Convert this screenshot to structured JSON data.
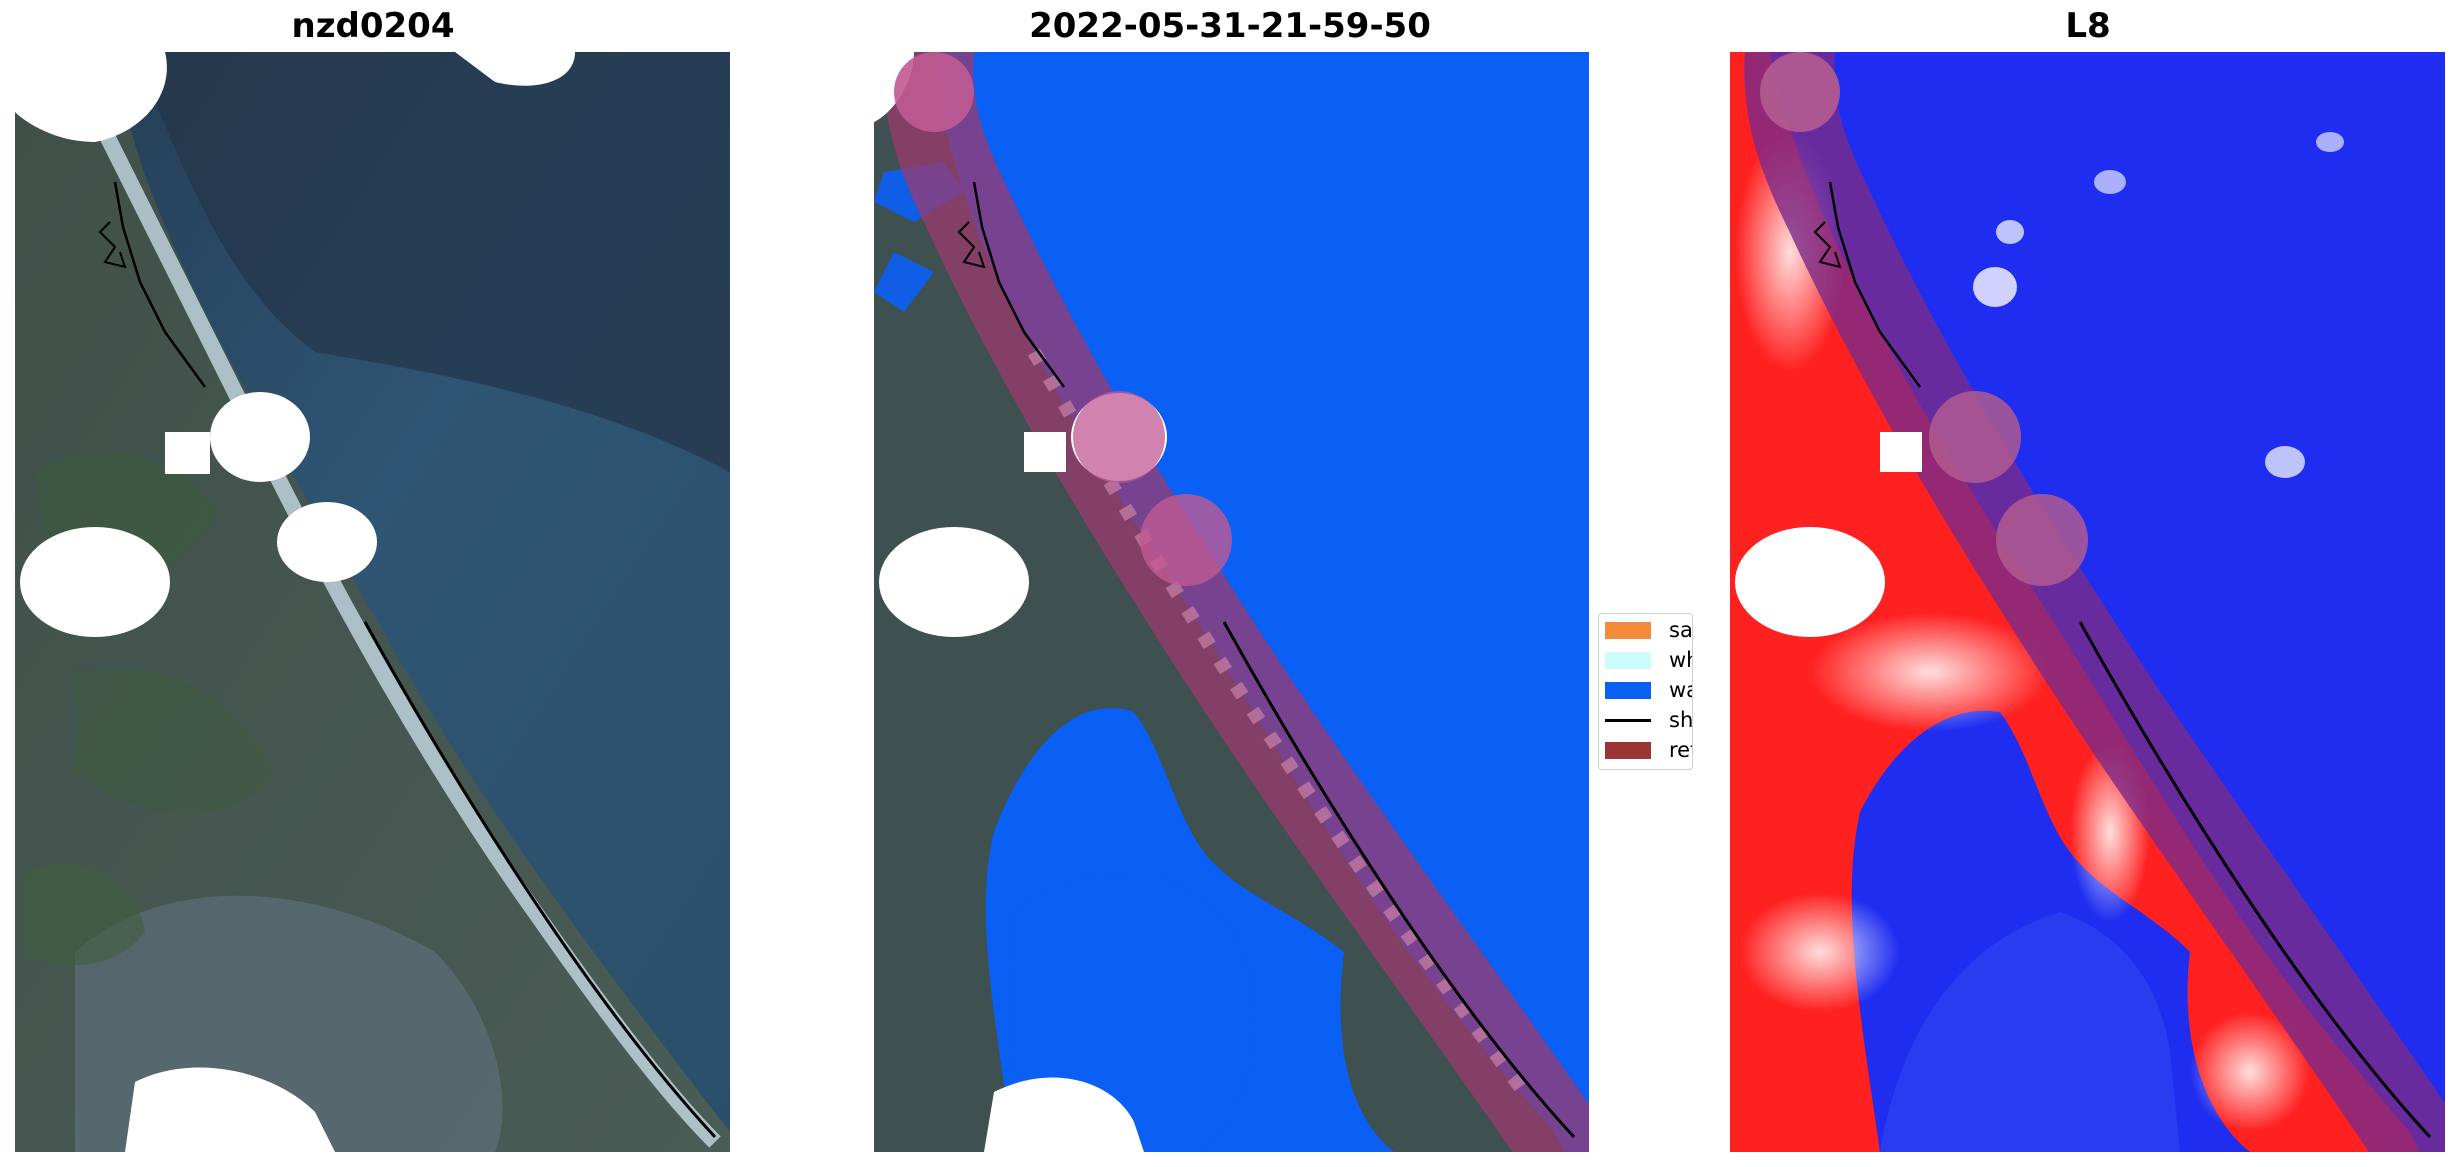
{
  "panels": [
    {
      "title": "nzd0204"
    },
    {
      "title": "2022-05-31-21-59-50"
    },
    {
      "title": "L8"
    }
  ],
  "legend": {
    "items": [
      {
        "label": "sand",
        "color": "#f28c3a",
        "kind": "patch"
      },
      {
        "label": "whitew",
        "color": "#ccfcfc",
        "kind": "patch"
      },
      {
        "label": "water",
        "color": "#0a5ff5",
        "kind": "patch"
      },
      {
        "label": "shorel",
        "color": "#000000",
        "kind": "line"
      },
      {
        "label": "referen",
        "color": "#9c3434",
        "kind": "patch"
      }
    ]
  },
  "colors": {
    "water_class": "#0a5ff5",
    "reference_buffer": "#b05a90",
    "index_positive": "#ff1a1a",
    "index_negative": "#1a1af0",
    "shoreline": "#000000",
    "no_data": "#ffffff"
  }
}
